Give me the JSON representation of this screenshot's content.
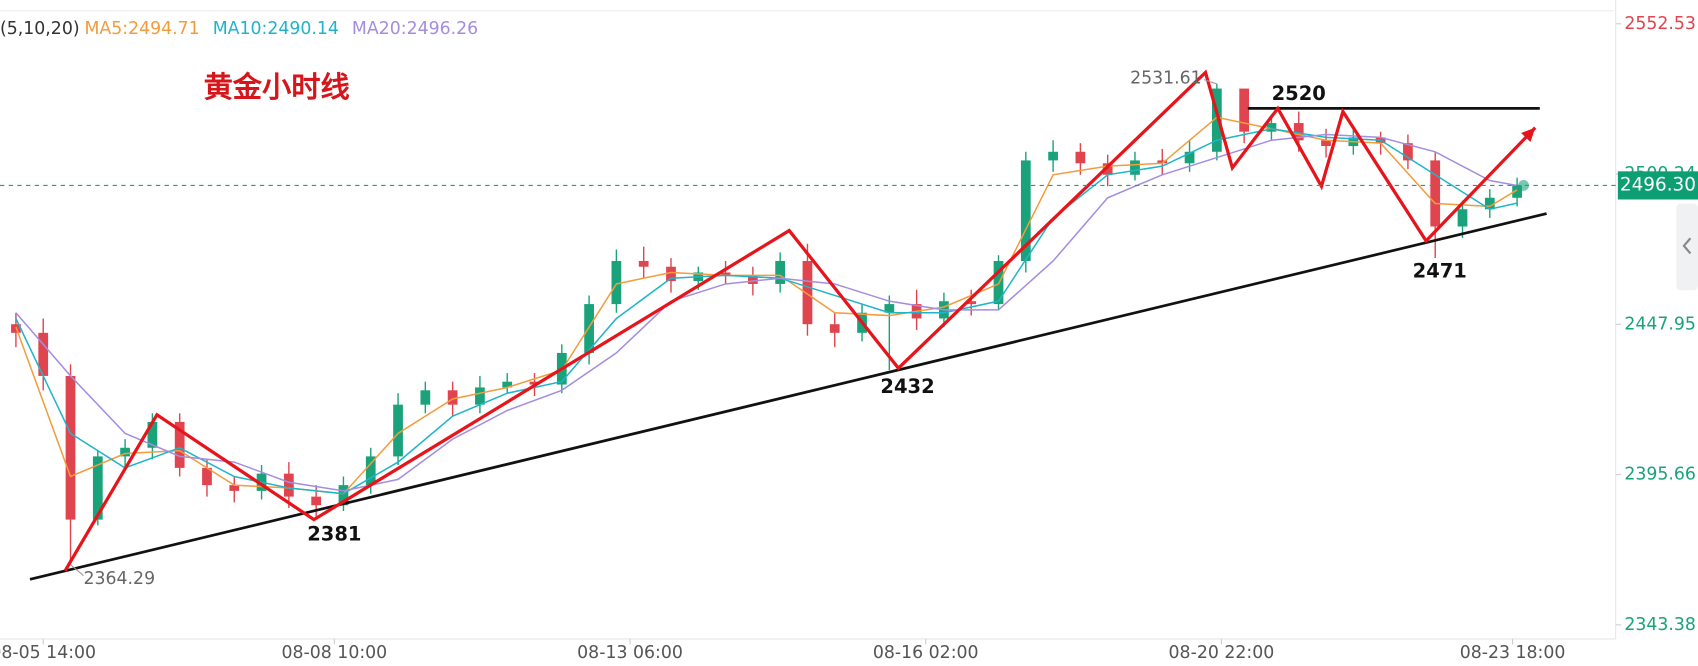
{
  "chart_data": {
    "type": "candlestick",
    "title": "黄金小时线",
    "legend_prefix": "(5,10,20)",
    "up_color": "#1aa37a",
    "down_color": "#e0454f",
    "x": [
      -6,
      0,
      6,
      12,
      18,
      24,
      30,
      36,
      42,
      48,
      54,
      60,
      66,
      72,
      78,
      84,
      90,
      96,
      102,
      108,
      114,
      120,
      126,
      132,
      138,
      144,
      150,
      156,
      162,
      168,
      174,
      180,
      186,
      192,
      198,
      204,
      210,
      216,
      222,
      228,
      234,
      240,
      246,
      252,
      258,
      264,
      270,
      276,
      282,
      288,
      294,
      300,
      306,
      312,
      318,
      324
    ],
    "open": [
      2448,
      2445,
      2430,
      2380,
      2402,
      2405,
      2414,
      2398,
      2392,
      2390,
      2396,
      2388,
      2385,
      2392,
      2402,
      2420,
      2425,
      2420,
      2426,
      2428,
      2427,
      2438,
      2455,
      2470,
      2468,
      2463,
      2466,
      2465,
      2462,
      2470,
      2448,
      2445,
      2452,
      2455,
      2450,
      2456,
      2455,
      2470,
      2505,
      2508,
      2504,
      2500,
      2505,
      2504,
      2508,
      2530,
      2515,
      2518,
      2512,
      2510,
      2513,
      2511,
      2505,
      2482,
      2488,
      2492
    ],
    "high": [
      2452,
      2450,
      2434,
      2404,
      2408,
      2417,
      2417,
      2401,
      2395,
      2399,
      2400,
      2392,
      2395,
      2405,
      2424,
      2428,
      2428,
      2430,
      2431,
      2431,
      2441,
      2458,
      2474,
      2475,
      2471,
      2468,
      2470,
      2468,
      2473,
      2476,
      2452,
      2455,
      2458,
      2460,
      2459,
      2460,
      2472,
      2508,
      2512,
      2511,
      2507,
      2508,
      2509,
      2512,
      2531.61,
      2529,
      2521,
      2522,
      2516,
      2516,
      2515,
      2514,
      2508,
      2491,
      2495,
      2499
    ],
    "low": [
      2440,
      2425,
      2364.29,
      2378,
      2398,
      2401,
      2395,
      2388,
      2386,
      2387,
      2384,
      2381,
      2383,
      2389,
      2399,
      2417,
      2416,
      2417,
      2424,
      2423,
      2424,
      2434,
      2452,
      2464,
      2459,
      2460,
      2462,
      2458,
      2459,
      2444,
      2440,
      2442,
      2432,
      2446,
      2447,
      2451,
      2453,
      2466,
      2501,
      2500,
      2496,
      2498,
      2500,
      2501,
      2505,
      2511,
      2512,
      2508,
      2506,
      2507,
      2507,
      2502,
      2471,
      2478,
      2485,
      2489
    ],
    "close": [
      2445,
      2430,
      2380,
      2402,
      2405,
      2414,
      2398,
      2392,
      2390,
      2396,
      2388,
      2385,
      2392,
      2402,
      2420,
      2425,
      2420,
      2426,
      2428,
      2427,
      2438,
      2455,
      2470,
      2468,
      2463,
      2466,
      2465,
      2462,
      2470,
      2448,
      2445,
      2452,
      2455,
      2450,
      2456,
      2455,
      2470,
      2505,
      2508,
      2504,
      2500,
      2505,
      2504,
      2508,
      2530,
      2515,
      2518,
      2512,
      2510,
      2513,
      2511,
      2505,
      2482,
      2488,
      2492,
      2496.3
    ],
    "series": [
      {
        "name": "MA5:2494.71",
        "color": "#f39c3c",
        "x": [
          -6,
          6,
          18,
          30,
          42,
          54,
          66,
          78,
          90,
          102,
          114,
          126,
          138,
          150,
          162,
          174,
          186,
          198,
          210,
          222,
          234,
          246,
          258,
          270,
          282,
          294,
          306,
          318,
          324
        ],
        "values": [
          2447,
          2395,
          2403,
          2404,
          2392,
          2391,
          2389,
          2410,
          2422,
          2426,
          2432,
          2462,
          2466,
          2465,
          2465,
          2452,
          2451,
          2454,
          2462,
          2500,
          2503,
          2504,
          2520,
          2516,
          2512,
          2511,
          2490,
          2489,
          2494.71
        ]
      },
      {
        "name": "MA10:2490.14",
        "color": "#1fb5c9",
        "x": [
          -6,
          6,
          18,
          30,
          42,
          54,
          66,
          78,
          90,
          102,
          114,
          126,
          138,
          150,
          162,
          174,
          186,
          198,
          210,
          222,
          234,
          246,
          258,
          270,
          282,
          294,
          306,
          318,
          324
        ],
        "values": [
          2450,
          2410,
          2398,
          2405,
          2395,
          2391,
          2389,
          2400,
          2416,
          2424,
          2428,
          2450,
          2464,
          2465,
          2464,
          2458,
          2452,
          2452,
          2456,
          2485,
          2500,
          2503,
          2512,
          2516,
          2513,
          2512,
          2500,
          2488,
          2490.14
        ]
      },
      {
        "name": "MA20:2496.26",
        "color": "#a48de0",
        "x": [
          -6,
          6,
          18,
          30,
          42,
          54,
          66,
          78,
          90,
          102,
          114,
          126,
          138,
          150,
          162,
          174,
          186,
          198,
          210,
          222,
          234,
          246,
          258,
          270,
          282,
          294,
          306,
          318,
          324
        ],
        "values": [
          2452,
          2430,
          2410,
          2402,
          2400,
          2393,
          2390,
          2394,
          2408,
          2418,
          2425,
          2438,
          2456,
          2462,
          2464,
          2462,
          2456,
          2453,
          2453,
          2470,
          2492,
          2500,
          2506,
          2512,
          2514,
          2513,
          2508,
          2498,
          2496.26
        ]
      }
    ],
    "last_price": {
      "value": 2496.3,
      "label": "2496.30"
    },
    "xlim": [
      -9.5,
      345.2
    ],
    "xticks": [
      {
        "value": 0,
        "label": "08-05 14:00"
      },
      {
        "value": 64,
        "label": "08-08 10:00"
      },
      {
        "value": 129,
        "label": "08-13 06:00"
      },
      {
        "value": 194,
        "label": "08-16 02:00"
      },
      {
        "value": 259,
        "label": "08-20 22:00"
      },
      {
        "value": 323,
        "label": "08-23 18:00"
      }
    ],
    "ylim": [
      2338.48,
      2557.05
    ],
    "yticks": [
      2552.53,
      2500.24,
      2447.95,
      2395.66,
      2343.38
    ],
    "extremes": [
      {
        "x": 6,
        "value": 2364.29
      },
      {
        "x": 258,
        "value": 2531.61
      }
    ],
    "labels": [
      {
        "x": 64,
        "value": 2381
      },
      {
        "x": 190,
        "value": 2432
      },
      {
        "x": 276,
        "value": 2520
      },
      {
        "x": 307,
        "value": 2471
      }
    ],
    "zigzag": {
      "x": [
        4.8,
        25,
        59.5,
        164,
        188,
        255.5,
        261.4,
        271.4,
        281,
        285.7,
        304,
        328
      ],
      "values": [
        2362.2,
        2416.5,
        2380,
        2480.6,
        2432.7,
        2535.6,
        2502.4,
        2523.1,
        2496,
        2522,
        2477,
        2516.4
      ]
    },
    "support": {
      "x": [
        -2.9,
        330.5
      ],
      "values": [
        2359.2,
        2486.5
      ]
    },
    "resistance": {
      "x": [
        264.8,
        329
      ],
      "values": [
        2523.1,
        2523.1
      ]
    }
  }
}
